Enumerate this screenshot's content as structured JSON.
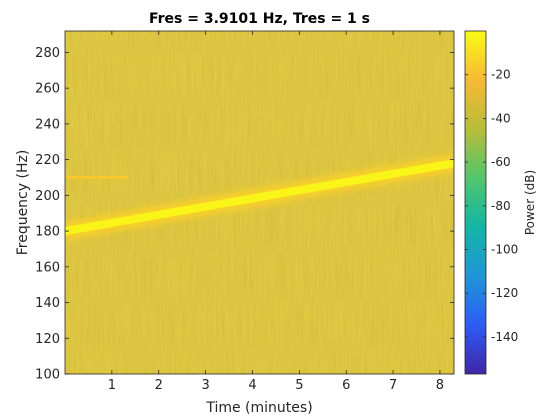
{
  "chart_data": {
    "type": "heatmap",
    "title": "Fres = 3.9101 Hz, Tres = 1 s",
    "xlabel": "Time (minutes)",
    "ylabel": "Frequency (Hz)",
    "xlim": [
      0,
      8.3
    ],
    "ylim": [
      100,
      292
    ],
    "x_ticks": [
      1,
      2,
      3,
      4,
      5,
      6,
      7,
      8
    ],
    "y_ticks": [
      100,
      120,
      140,
      160,
      180,
      200,
      220,
      240,
      260,
      280
    ],
    "background_level_db": -30,
    "chirp": {
      "start_time": 0,
      "start_freq": 180,
      "end_time": 8.3,
      "end_freq": 218,
      "level_db": -2
    },
    "tone": {
      "start_time": 0,
      "end_time": 1.35,
      "freq": 210,
      "level_db": -20
    },
    "colorbar": {
      "label": "Power (dB)",
      "range": [
        -157,
        0
      ],
      "ticks": [
        -140,
        -120,
        -100,
        -80,
        -60,
        -40,
        -20
      ],
      "colors": [
        "#3e26a8",
        "#2d5cf5",
        "#1f96d7",
        "#11b6a5",
        "#51c66b",
        "#b7bd38",
        "#f8b933",
        "#f9fb15"
      ]
    }
  }
}
